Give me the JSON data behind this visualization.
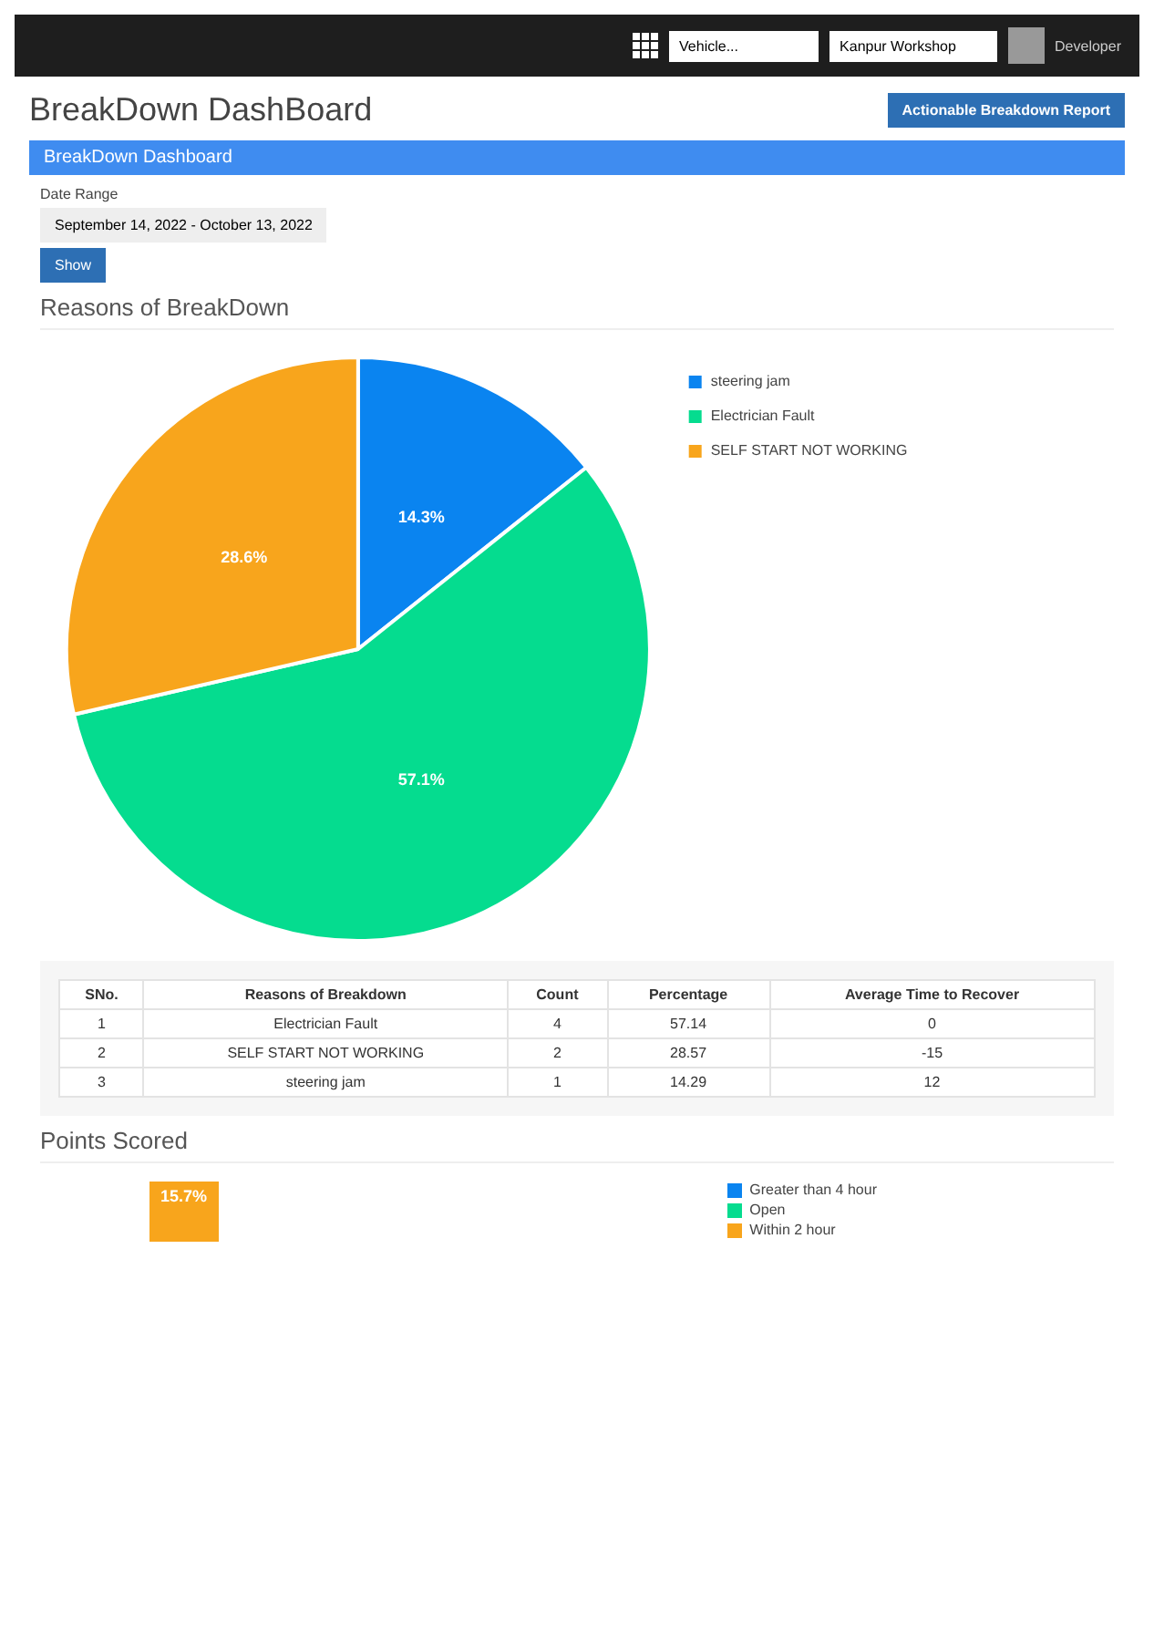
{
  "chart_data": [
    {
      "type": "pie",
      "title": "Reasons of BreakDown",
      "categories": [
        "steering jam",
        "Electrician Fault",
        "SELF START NOT WORKING"
      ],
      "values": [
        14.3,
        57.1,
        28.6
      ],
      "value_labels": [
        "14.3%",
        "57.1%",
        "28.6%"
      ],
      "colors": [
        "#0a84f0",
        "#05dc8f",
        "#f8a51c"
      ],
      "legend": "top right",
      "annotations": [
        "Vehicle...",
        "Kanpur Workshop",
        "Developer",
        "BreakDown DashBoard",
        "Actionable Breakdown Report",
        "BreakDown Dashboard",
        "Date Range",
        "September 14, 2022 - October 13, 2022",
        "Show"
      ]
    },
    {
      "type": "other",
      "categories": [
        "SNo.",
        "Reasons of Breakdown",
        "Count",
        "Percentage",
        "Average Time to Recover"
      ],
      "cell_labels": [
        [
          "1",
          "Electrician Fault",
          "4",
          "57.14",
          "0"
        ],
        [
          "2",
          "SELF START NOT WORKING",
          "2",
          "28.57",
          "-15"
        ],
        [
          "3",
          "steering jam",
          "1",
          "14.29",
          "12"
        ]
      ]
    },
    {
      "type": "other",
      "title": "Points Scored",
      "categories": [
        "Greater than 4 hour",
        "Open",
        "Within 2 hour"
      ],
      "colors": [
        "#0a84f0",
        "#05dc8f",
        "#f8a51c"
      ],
      "value_labels": [
        null,
        null,
        "15.7%"
      ]
    }
  ]
}
